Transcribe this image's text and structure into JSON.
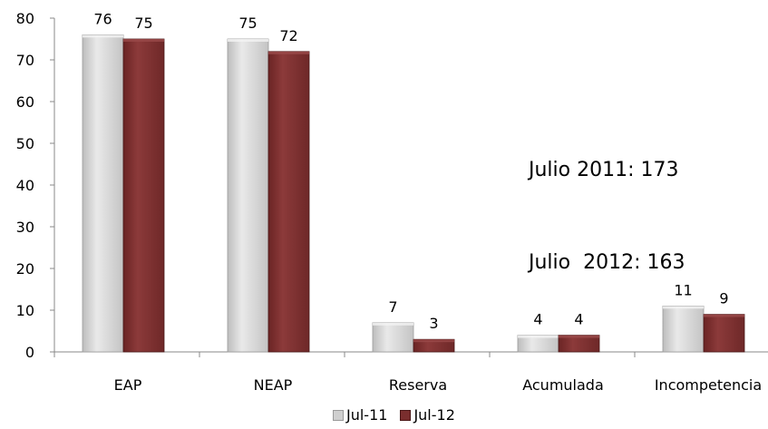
{
  "chart_data": {
    "type": "bar",
    "categories": [
      "EAP",
      "NEAP",
      "Reserva",
      "Acumulada",
      "Incompetencia"
    ],
    "series": [
      {
        "name": "Jul-11",
        "values": [
          76,
          75,
          7,
          4,
          11
        ],
        "color": "#d4d4d4"
      },
      {
        "name": "Jul-12",
        "values": [
          75,
          72,
          3,
          4,
          9
        ],
        "color": "#7a2e2e"
      }
    ],
    "ylim": [
      0,
      80
    ],
    "yticks": [
      0,
      10,
      20,
      30,
      40,
      50,
      60,
      70,
      80
    ],
    "legend_position": "bottom",
    "grid": false
  },
  "annotations": {
    "line1": "Julio 2011: 173",
    "line2": "Julio  2012: 163"
  }
}
